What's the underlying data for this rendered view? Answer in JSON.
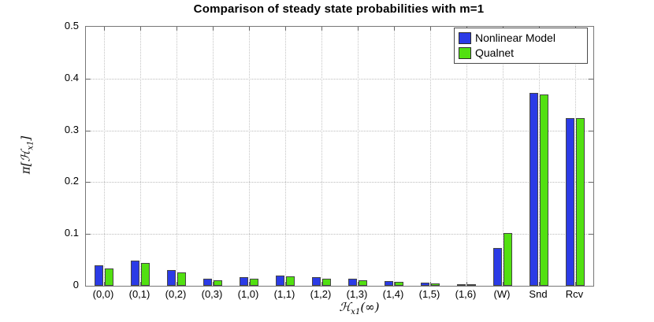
{
  "chart_data": {
    "type": "bar",
    "title": "Comparison of steady state probabilities with m=1",
    "categories": [
      "(0,0)",
      "(0,1)",
      "(0,2)",
      "(0,3)",
      "(1,0)",
      "(1,1)",
      "(1,2)",
      "(1,3)",
      "(1,4)",
      "(1,5)",
      "(1,6)",
      "(W)",
      "Snd",
      "Rcv"
    ],
    "series": [
      {
        "name": "Nonlinear Model",
        "color": "#2B3BE6",
        "values": [
          0.039,
          0.048,
          0.031,
          0.014,
          0.016,
          0.02,
          0.016,
          0.013,
          0.009,
          0.006,
          0.002,
          0.073,
          0.373,
          0.323
        ]
      },
      {
        "name": "Qualnet",
        "color": "#52E011",
        "values": [
          0.034,
          0.044,
          0.026,
          0.01,
          0.014,
          0.018,
          0.014,
          0.011,
          0.008,
          0.004,
          0.001,
          0.102,
          0.37,
          0.323
        ]
      }
    ],
    "xlabel": {
      "prefix": "ℋ",
      "sub": "x1",
      "suffix": "(∞)"
    },
    "ylabel": {
      "prefix": "π[ℋ",
      "sub": "x1",
      "suffix": "]"
    },
    "ylim": [
      0,
      0.5
    ],
    "yticks": [
      0,
      0.1,
      0.2,
      0.3,
      0.4,
      0.5
    ],
    "grid": true,
    "legend_position": "top-right"
  }
}
